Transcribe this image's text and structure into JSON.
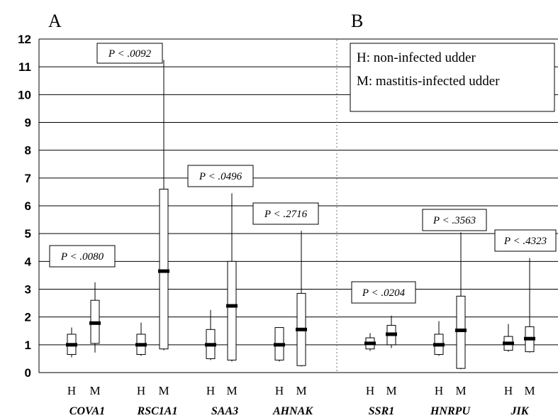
{
  "chart_data": {
    "type": "box",
    "ylim": [
      0,
      12
    ],
    "yticks": [
      "0",
      "1",
      "2",
      "3",
      "4",
      "5",
      "6",
      "7",
      "8",
      "9",
      "10",
      "11",
      "12"
    ],
    "grid": true,
    "panels": [
      {
        "label": "A",
        "genes": [
          "COVA1",
          "RSC1A1",
          "SAA3",
          "AHNAK"
        ]
      },
      {
        "label": "B",
        "genes": [
          "SSR1",
          "HNRPU",
          "JIK"
        ]
      }
    ],
    "group_labels": [
      "H",
      "M"
    ],
    "legend": {
      "position": "top-right",
      "entries": [
        "H: non-infected udder",
        "M: mastitis-infected udder"
      ]
    },
    "genes": [
      {
        "name": "COVA1",
        "p_label": "P < .0080",
        "H": {
          "min": 0.55,
          "q1": 0.65,
          "median": 1.0,
          "q3": 1.38,
          "max": 1.62
        },
        "M": {
          "min": 0.72,
          "q1": 1.05,
          "median": 1.78,
          "q3": 2.6,
          "max": 3.25
        }
      },
      {
        "name": "RSC1A1",
        "p_label": "P < .0092",
        "H": {
          "min": 0.6,
          "q1": 0.65,
          "median": 1.0,
          "q3": 1.38,
          "max": 1.8
        },
        "M": {
          "min": 0.8,
          "q1": 0.85,
          "median": 3.65,
          "q3": 6.6,
          "max": 11.25
        }
      },
      {
        "name": "SAA3",
        "p_label": "P < .0496",
        "H": {
          "min": 0.45,
          "q1": 0.5,
          "median": 1.0,
          "q3": 1.55,
          "max": 2.25
        },
        "M": {
          "min": 0.4,
          "q1": 0.45,
          "median": 2.4,
          "q3": 4.0,
          "max": 6.45
        }
      },
      {
        "name": "AHNAK",
        "p_label": "P < .2716",
        "H": {
          "min": 0.4,
          "q1": 0.45,
          "median": 1.0,
          "q3": 1.62,
          "max": 1.62
        },
        "M": {
          "min": 0.22,
          "q1": 0.25,
          "median": 1.55,
          "q3": 2.85,
          "max": 5.1
        }
      },
      {
        "name": "SSR1",
        "p_label": "P < .0204",
        "H": {
          "min": 0.78,
          "q1": 0.85,
          "median": 1.05,
          "q3": 1.25,
          "max": 1.42
        },
        "M": {
          "min": 0.88,
          "q1": 1.0,
          "median": 1.38,
          "q3": 1.7,
          "max": 2.05
        }
      },
      {
        "name": "HNRPU",
        "p_label": "P < .3563",
        "H": {
          "min": 0.6,
          "q1": 0.65,
          "median": 1.0,
          "q3": 1.38,
          "max": 1.85
        },
        "M": {
          "min": 0.12,
          "q1": 0.15,
          "median": 1.52,
          "q3": 2.75,
          "max": 5.05
        }
      },
      {
        "name": "JIK",
        "p_label": "P < .4323",
        "H": {
          "min": 0.75,
          "q1": 0.8,
          "median": 1.05,
          "q3": 1.3,
          "max": 1.75
        },
        "M": {
          "min": 0.72,
          "q1": 0.75,
          "median": 1.22,
          "q3": 1.65,
          "max": 4.12
        }
      }
    ]
  }
}
